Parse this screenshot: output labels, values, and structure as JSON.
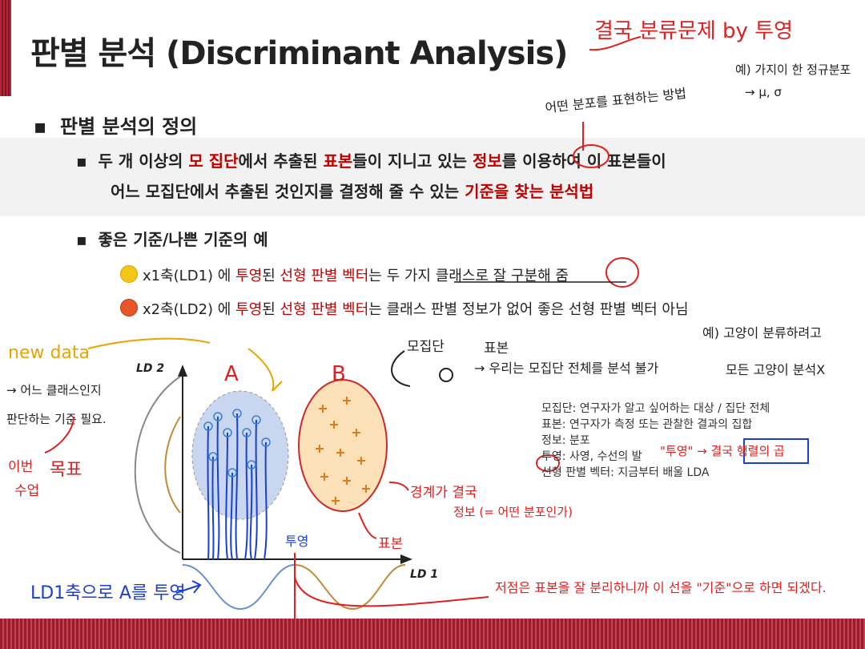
{
  "header": {
    "title": "판별 분석 (Discriminant Analysis)"
  },
  "annotations": {
    "title_note": "결국 분류문제 by 투영",
    "top_right_note": "예) 가지이 한 정규분포",
    "top_right_note2": "→ μ, σ",
    "method_note": "어떤 분포를 표현하는 방법",
    "new_data": "new data",
    "new_data_note1": "→ 어느 클래스인지",
    "new_data_note2": "판단하는 기준 필요.",
    "goal_note1": "이번",
    "goal_note2": "수업",
    "goal_note3": "목표",
    "pop_label": "모집단",
    "sample_label": "표본",
    "pop_note": "→ 우리는 모집단 전체를 분석 불가",
    "pop_example": "예) 고양이 분류하려고",
    "pop_example2": "모든 고양이 분석X",
    "boundary_note1": "경계가 결국",
    "boundary_note2": "정보 (= 어떤 분포인가)",
    "sample_note": "표본",
    "projection_note": "투영",
    "ld1_note": "LD1축으로 A를 투영",
    "bottom_note": "저점은 표본을 잘 분리하니까 이 선을 \"기준\"으로 하면 되겠다.",
    "projection_quote": "\"투영\" → 결국 행렬의 곱"
  },
  "section": {
    "bullet1": "판별 분석의 정의",
    "definition_line1_parts": [
      "두 개 이상의 ",
      "모 집단",
      "에서 추출된 ",
      "표본",
      "들이 지니고 있는 ",
      "정보",
      "를 이용하여 이 표본들이"
    ],
    "definition_line2_parts": [
      "어느 모집단에서 추출된 것인지를 결정해 줄 수 있는 ",
      "기준을 찾는 분석법"
    ],
    "bullet2": "좋은 기준/나쁜 기준의 예",
    "good_parts": [
      "x1축(LD1) 에 ",
      "투영",
      "된 ",
      "선형 판별 벡터",
      "는 두 가지 클래스로 잘 구분해 줌"
    ],
    "bad_parts": [
      "x2축(LD2) 에 ",
      "투영",
      "된 ",
      "선형 판별 벡터",
      "는 클래스 판별 정보가 없어 좋은 선형 판별 벡터 아님"
    ]
  },
  "figure": {
    "ld2_label": "LD 2",
    "ld1_label": "LD 1",
    "class_a": "A",
    "class_b": "B"
  },
  "definitions": [
    "모집단: 연구자가 알고 싶어하는 대상 / 집단 전체",
    "표본: 연구자가 측정 또는 관찰한 결과의 집합",
    "정보: 분포",
    "투영: 사영, 수선의 발",
    "선형 판별 벡터: 지금부터 배울 LDA"
  ]
}
